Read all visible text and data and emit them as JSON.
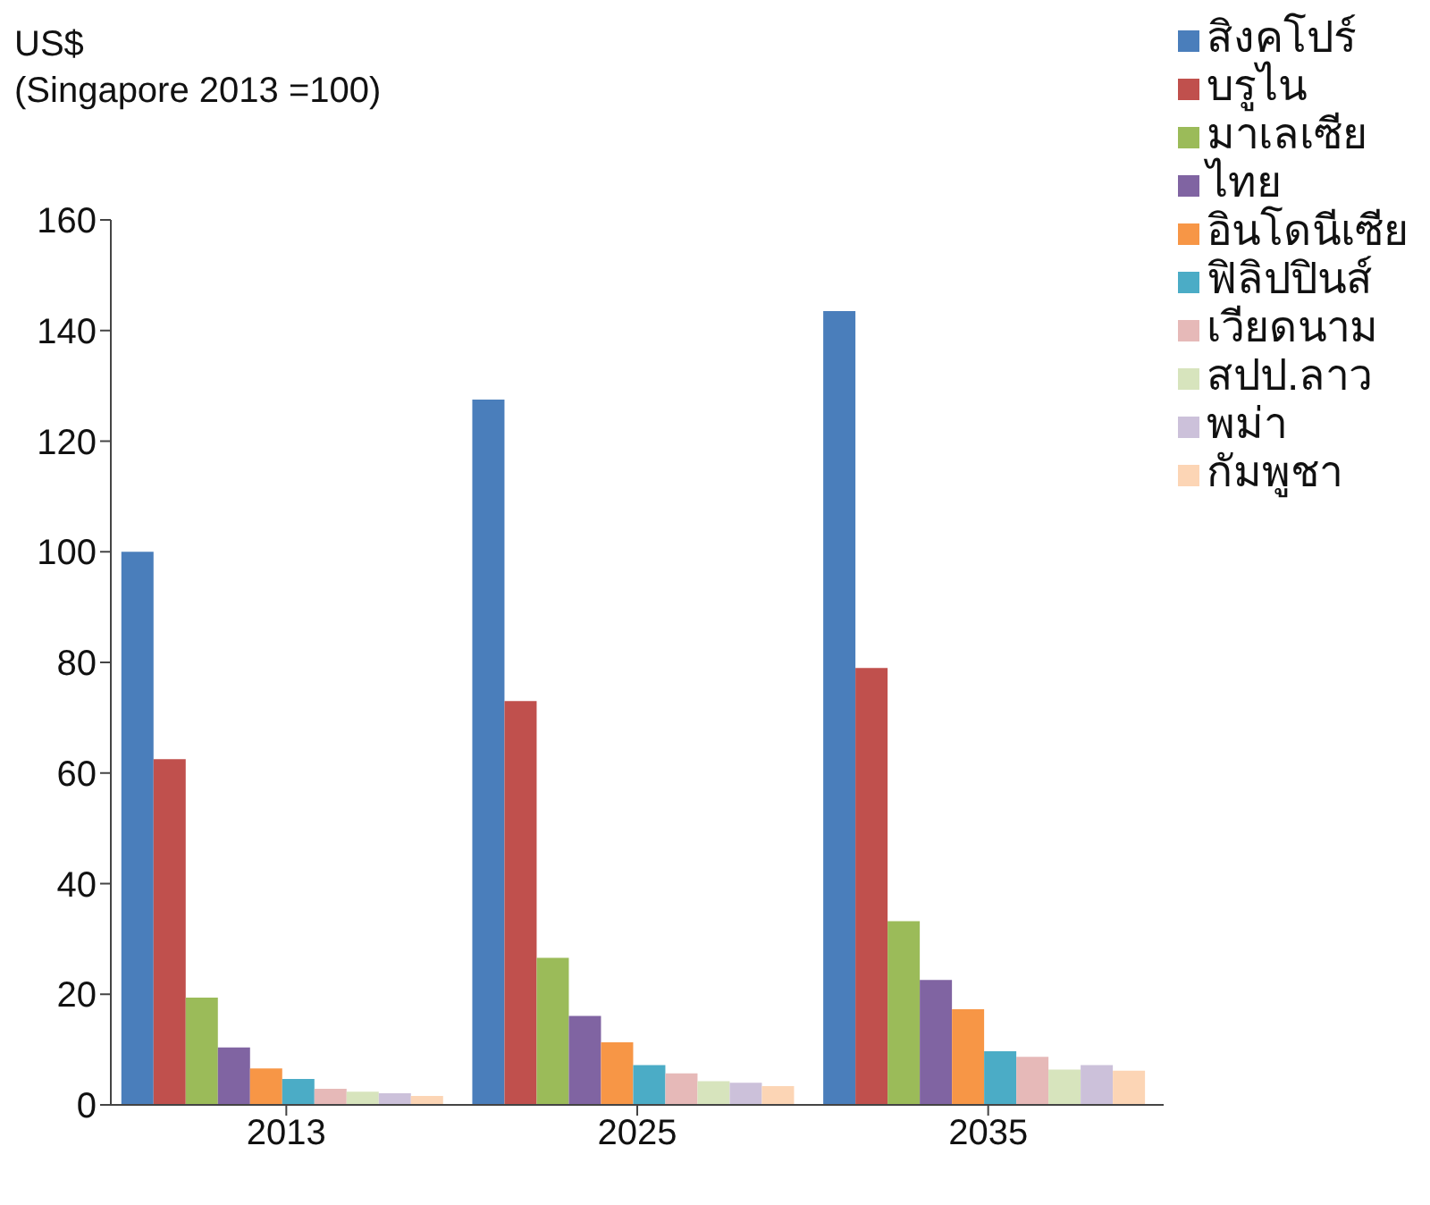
{
  "chart_data": {
    "type": "bar",
    "ylabel": "US$",
    "subtitle": "(Singapore 2013 =100)",
    "categories": [
      "2013",
      "2025",
      "2035"
    ],
    "series": [
      {
        "name": "สิงคโปร์",
        "color": "#4a7ebb",
        "values": [
          100,
          127.5,
          143.5
        ]
      },
      {
        "name": "บรูไน",
        "color": "#c0504d",
        "values": [
          62.5,
          73,
          79
        ]
      },
      {
        "name": "มาเลเซีย",
        "color": "#9bbb59",
        "values": [
          19.4,
          26.6,
          33.2
        ]
      },
      {
        "name": "ไทย",
        "color": "#8064a2",
        "values": [
          10.4,
          16.1,
          22.6
        ]
      },
      {
        "name": "อินโดนีเซีย",
        "color": "#f79646",
        "values": [
          6.6,
          11.3,
          17.3
        ]
      },
      {
        "name": "ฟิลิปปินส์",
        "color": "#4bacc6",
        "values": [
          4.7,
          7.2,
          9.7
        ]
      },
      {
        "name": "เวียดนาม",
        "color": "#e6b9b8",
        "values": [
          2.9,
          5.7,
          8.7
        ]
      },
      {
        "name": "สปป.ลาว",
        "color": "#d7e4bd",
        "values": [
          2.4,
          4.3,
          6.4
        ]
      },
      {
        "name": "พม่า",
        "color": "#ccc1da",
        "values": [
          2.1,
          4.0,
          7.2
        ]
      },
      {
        "name": "กัมพูชา",
        "color": "#fcd5b5",
        "values": [
          1.6,
          3.4,
          6.2
        ]
      }
    ],
    "ylim": [
      0,
      160
    ],
    "yticks": [
      0,
      20,
      40,
      60,
      80,
      100,
      120,
      140,
      160
    ],
    "grid": false,
    "legend": "top right"
  }
}
